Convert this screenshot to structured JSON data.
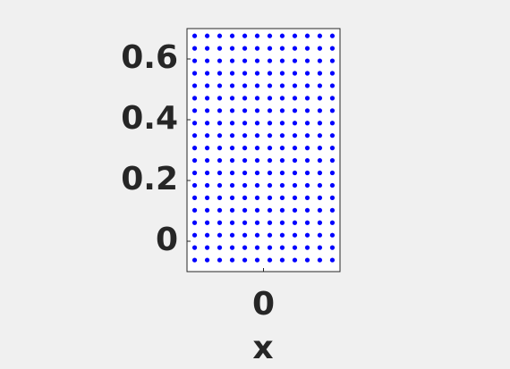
{
  "chart_data": {
    "type": "scatter",
    "x_label": "x",
    "color": "#0000ff",
    "xlim": [
      -1,
      1
    ],
    "ylim": [
      -0.1,
      0.7
    ],
    "xticks": [
      0
    ],
    "yticks": [
      0,
      0.2,
      0.4,
      0.6
    ],
    "x": [
      -0.9,
      -0.736,
      -0.573,
      -0.409,
      -0.245,
      -0.082,
      0.082,
      0.245,
      0.409,
      0.573,
      0.736,
      0.9,
      -0.9,
      -0.736,
      -0.573,
      -0.409,
      -0.245,
      -0.082,
      0.082,
      0.245,
      0.409,
      0.573,
      0.736,
      0.9,
      -0.9,
      -0.736,
      -0.573,
      -0.409,
      -0.245,
      -0.082,
      0.082,
      0.245,
      0.409,
      0.573,
      0.736,
      0.9,
      -0.9,
      -0.736,
      -0.573,
      -0.409,
      -0.245,
      -0.082,
      0.082,
      0.245,
      0.409,
      0.573,
      0.736,
      0.9,
      -0.9,
      -0.736,
      -0.573,
      -0.409,
      -0.245,
      -0.082,
      0.082,
      0.245,
      0.409,
      0.573,
      0.736,
      0.9,
      -0.9,
      -0.736,
      -0.573,
      -0.409,
      -0.245,
      -0.082,
      0.082,
      0.245,
      0.409,
      0.573,
      0.736,
      0.9,
      -0.9,
      -0.736,
      -0.573,
      -0.409,
      -0.245,
      -0.082,
      0.082,
      0.245,
      0.409,
      0.573,
      0.736,
      0.9,
      -0.9,
      -0.736,
      -0.573,
      -0.409,
      -0.245,
      -0.082,
      0.082,
      0.245,
      0.409,
      0.573,
      0.736,
      0.9,
      -0.9,
      -0.736,
      -0.573,
      -0.409,
      -0.245,
      -0.082,
      0.082,
      0.245,
      0.409,
      0.573,
      0.736,
      0.9,
      -0.9,
      -0.736,
      -0.573,
      -0.409,
      -0.245,
      -0.082,
      0.082,
      0.245,
      0.409,
      0.573,
      0.736,
      0.9,
      -0.9,
      -0.736,
      -0.573,
      -0.409,
      -0.245,
      -0.082,
      0.082,
      0.245,
      0.409,
      0.573,
      0.736,
      0.9,
      -0.9,
      -0.736,
      -0.573,
      -0.409,
      -0.245,
      -0.082,
      0.082,
      0.245,
      0.409,
      0.573,
      0.736,
      0.9,
      -0.9,
      -0.736,
      -0.573,
      -0.409,
      -0.245,
      -0.082,
      0.082,
      0.245,
      0.409,
      0.573,
      0.736,
      0.9,
      -0.9,
      -0.736,
      -0.573,
      -0.409,
      -0.245,
      -0.082,
      0.082,
      0.245,
      0.409,
      0.573,
      0.736,
      0.9,
      -0.9,
      -0.736,
      -0.573,
      -0.409,
      -0.245,
      -0.082,
      0.082,
      0.245,
      0.409,
      0.573,
      0.736,
      0.9,
      -0.9,
      -0.736,
      -0.573,
      -0.409,
      -0.245,
      -0.082,
      0.082,
      0.245,
      0.409,
      0.573,
      0.736,
      0.9,
      -0.9,
      -0.736,
      -0.573,
      -0.409,
      -0.245,
      -0.082,
      0.082,
      0.245,
      0.409,
      0.573,
      0.736,
      0.9,
      -0.9,
      -0.736,
      -0.573,
      -0.409,
      -0.245,
      -0.082,
      0.082,
      0.245,
      0.409,
      0.573,
      0.736,
      0.9,
      -0.9,
      -0.736,
      -0.573,
      -0.409,
      -0.245,
      -0.082,
      0.082,
      0.245,
      0.409,
      0.573,
      0.736,
      0.9
    ],
    "y": [
      -0.062,
      -0.062,
      -0.062,
      -0.062,
      -0.062,
      -0.062,
      -0.062,
      -0.062,
      -0.062,
      -0.062,
      -0.062,
      -0.062,
      -0.021,
      -0.021,
      -0.021,
      -0.021,
      -0.021,
      -0.021,
      -0.021,
      -0.021,
      -0.021,
      -0.021,
      -0.021,
      -0.021,
      0.02,
      0.02,
      0.02,
      0.02,
      0.02,
      0.02,
      0.02,
      0.02,
      0.02,
      0.02,
      0.02,
      0.02,
      0.061,
      0.061,
      0.061,
      0.061,
      0.061,
      0.061,
      0.061,
      0.061,
      0.061,
      0.061,
      0.061,
      0.061,
      0.102,
      0.102,
      0.102,
      0.102,
      0.102,
      0.102,
      0.102,
      0.102,
      0.102,
      0.102,
      0.102,
      0.102,
      0.143,
      0.143,
      0.143,
      0.143,
      0.143,
      0.143,
      0.143,
      0.143,
      0.143,
      0.143,
      0.143,
      0.143,
      0.184,
      0.184,
      0.184,
      0.184,
      0.184,
      0.184,
      0.184,
      0.184,
      0.184,
      0.184,
      0.184,
      0.184,
      0.225,
      0.225,
      0.225,
      0.225,
      0.225,
      0.225,
      0.225,
      0.225,
      0.225,
      0.225,
      0.225,
      0.225,
      0.266,
      0.266,
      0.266,
      0.266,
      0.266,
      0.266,
      0.266,
      0.266,
      0.266,
      0.266,
      0.266,
      0.266,
      0.307,
      0.307,
      0.307,
      0.307,
      0.307,
      0.307,
      0.307,
      0.307,
      0.307,
      0.307,
      0.307,
      0.307,
      0.348,
      0.348,
      0.348,
      0.348,
      0.348,
      0.348,
      0.348,
      0.348,
      0.348,
      0.348,
      0.348,
      0.348,
      0.389,
      0.389,
      0.389,
      0.389,
      0.389,
      0.389,
      0.389,
      0.389,
      0.389,
      0.389,
      0.389,
      0.389,
      0.43,
      0.43,
      0.43,
      0.43,
      0.43,
      0.43,
      0.43,
      0.43,
      0.43,
      0.43,
      0.43,
      0.43,
      0.471,
      0.471,
      0.471,
      0.471,
      0.471,
      0.471,
      0.471,
      0.471,
      0.471,
      0.471,
      0.471,
      0.471,
      0.512,
      0.512,
      0.512,
      0.512,
      0.512,
      0.512,
      0.512,
      0.512,
      0.512,
      0.512,
      0.512,
      0.512,
      0.553,
      0.553,
      0.553,
      0.553,
      0.553,
      0.553,
      0.553,
      0.553,
      0.553,
      0.553,
      0.553,
      0.553,
      0.594,
      0.594,
      0.594,
      0.594,
      0.594,
      0.594,
      0.594,
      0.594,
      0.594,
      0.594,
      0.594,
      0.594,
      0.635,
      0.635,
      0.635,
      0.635,
      0.635,
      0.635,
      0.635,
      0.635,
      0.635,
      0.635,
      0.635,
      0.635,
      0.676,
      0.676,
      0.676,
      0.676,
      0.676,
      0.676,
      0.676,
      0.676,
      0.676,
      0.676,
      0.676,
      0.676
    ]
  }
}
